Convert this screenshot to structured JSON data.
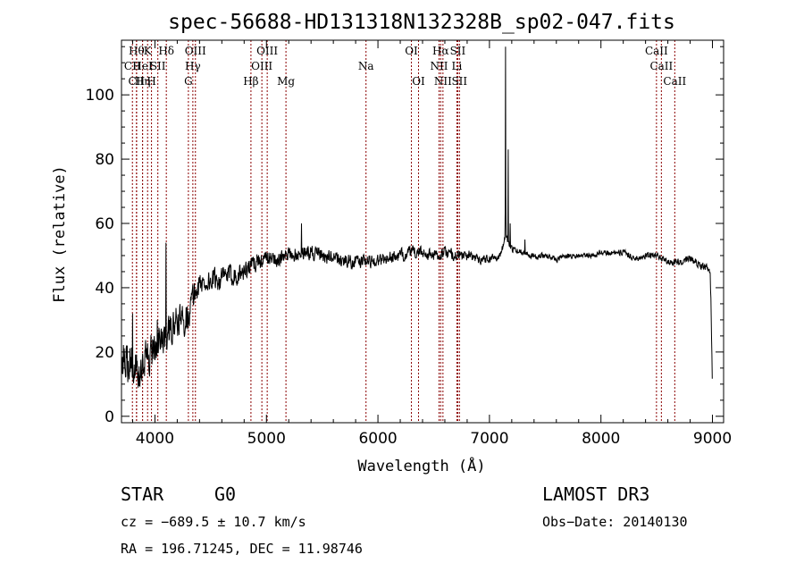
{
  "chart_data": {
    "type": "line",
    "title": "spec-56688-HD131318N132328B_sp02-047.fits",
    "xlabel": "Wavelength (Å)",
    "ylabel": "Flux (relative)",
    "xlim": [
      3700,
      9100
    ],
    "ylim": [
      -2,
      117
    ],
    "xticks": [
      4000,
      5000,
      6000,
      7000,
      8000,
      9000
    ],
    "xtick_labels": [
      "4000",
      "5000",
      "6000",
      "7000",
      "8000",
      "9000"
    ],
    "yticks": [
      0,
      20,
      40,
      60,
      80,
      100
    ],
    "ytick_labels": [
      "0",
      "20",
      "40",
      "60",
      "80",
      "100"
    ],
    "series": [
      {
        "name": "flux",
        "color": "#000000",
        "anchors_x": [
          3700,
          3780,
          3850,
          3930,
          4000,
          4080,
          4150,
          4200,
          4250,
          4300,
          4350,
          4400,
          4500,
          4600,
          4700,
          4800,
          4900,
          5000,
          5100,
          5200,
          5300,
          5400,
          5600,
          5800,
          6000,
          6200,
          6300,
          6400,
          6500,
          6550,
          6600,
          6700,
          6800,
          6900,
          7000,
          7100,
          7140,
          7200,
          7300,
          7400,
          7500,
          7600,
          7700,
          7800,
          7900,
          8000,
          8100,
          8200,
          8300,
          8400,
          8500,
          8600,
          8700,
          8800,
          8900,
          8960,
          8980,
          8990,
          9000
        ],
        "anchors_y": [
          18,
          17,
          14,
          18,
          22,
          24,
          27,
          29,
          30,
          32,
          38,
          41,
          42,
          43,
          44,
          45,
          48,
          49,
          49,
          50,
          51,
          51,
          49,
          48,
          48.5,
          50,
          51,
          51,
          50,
          50,
          51,
          50,
          50,
          49,
          49,
          50,
          56,
          52,
          51,
          50,
          50,
          49,
          50,
          50,
          50,
          51,
          51,
          51,
          49,
          50,
          50,
          48,
          48,
          49,
          47,
          46,
          45,
          30,
          8
        ],
        "noise_x": [
          3700,
          3900,
          4100,
          4300,
          4400,
          4800,
          5000,
          5500,
          6000,
          6500,
          7000,
          7200,
          7500,
          8000,
          8500,
          8900,
          9000
        ],
        "noise_amp": [
          5,
          5,
          4,
          4,
          3,
          2.5,
          2,
          1.8,
          1.6,
          1.4,
          1.2,
          0.8,
          0.7,
          0.7,
          0.8,
          0.9,
          1.2
        ],
        "spikes": [
          {
            "x": 3800,
            "y": 32
          },
          {
            "x": 4020,
            "y": 30
          },
          {
            "x": 4020,
            "y": 30
          },
          {
            "x": 4100,
            "y": 45
          },
          {
            "x": 4100,
            "y": 54
          },
          {
            "x": 5315,
            "y": 60
          },
          {
            "x": 7145,
            "y": 115
          },
          {
            "x": 7168,
            "y": 83
          },
          {
            "x": 7185,
            "y": 60
          },
          {
            "x": 7318,
            "y": 55
          }
        ]
      }
    ],
    "lines_color": "#8b0000",
    "lines": [
      {
        "x": 3798,
        "label": "CII",
        "row": 2
      },
      {
        "x": 3835,
        "label": "Hθ",
        "row": 1
      },
      {
        "x": 3835,
        "label": "CII",
        "row": 3
      },
      {
        "x": 3889,
        "label": "HeI",
        "row": 2
      },
      {
        "x": 3889,
        "label": "Hη",
        "row": 3
      },
      {
        "x": 3934,
        "label": "K",
        "row": 1
      },
      {
        "x": 3969,
        "label": "H",
        "row": 3
      },
      {
        "x": 4026,
        "label": "SII",
        "row": 2
      },
      {
        "x": 4102,
        "label": "Hδ",
        "row": 1
      },
      {
        "x": 4300,
        "label": "G",
        "row": 3
      },
      {
        "x": 4340,
        "label": "Hγ",
        "row": 2
      },
      {
        "x": 4363,
        "label": "OIII",
        "row": 1
      },
      {
        "x": 4861,
        "label": "Hβ",
        "row": 3
      },
      {
        "x": 4959,
        "label": "OIII",
        "row": 2
      },
      {
        "x": 5007,
        "label": "OIII",
        "row": 1
      },
      {
        "x": 5175,
        "label": "Mg",
        "row": 3
      },
      {
        "x": 5893,
        "label": "Na",
        "row": 2
      },
      {
        "x": 6300,
        "label": "OI",
        "row": 1
      },
      {
        "x": 6364,
        "label": "OI",
        "row": 3
      },
      {
        "x": 6548,
        "label": "NII",
        "row": 2
      },
      {
        "x": 6563,
        "label": "Hα",
        "row": 1
      },
      {
        "x": 6583,
        "label": "NII",
        "row": 3
      },
      {
        "x": 6708,
        "label": "Li",
        "row": 2
      },
      {
        "x": 6716,
        "label": "SII",
        "row": 1
      },
      {
        "x": 6731,
        "label": "SII",
        "row": 3
      },
      {
        "x": 8498,
        "label": "CaII",
        "row": 1
      },
      {
        "x": 8542,
        "label": "CaII",
        "row": 2
      },
      {
        "x": 8662,
        "label": "CaII",
        "row": 3
      }
    ]
  },
  "info": {
    "class": "STAR",
    "subclass": "G0",
    "survey": "LAMOST DR3",
    "cz": "cz = −689.5 ± 10.7 km/s",
    "obs_date": "Obs−Date: 20140130",
    "radec": "RA = 196.71245, DEC =  11.98746"
  }
}
